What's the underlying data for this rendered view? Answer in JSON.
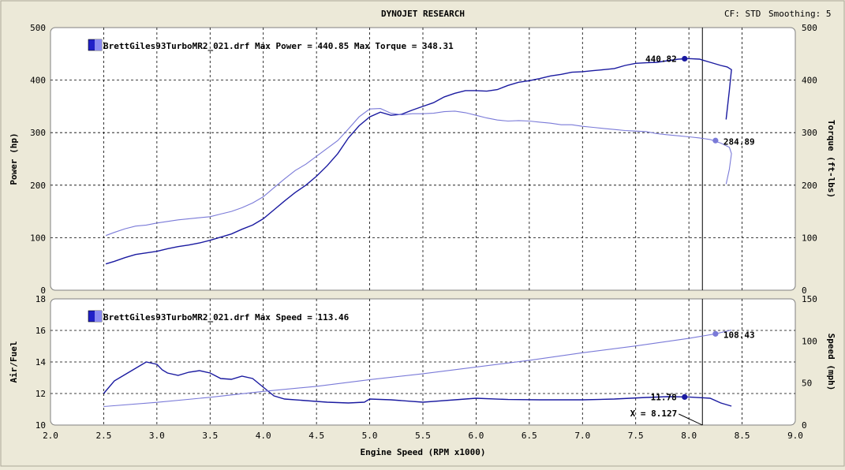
{
  "header": {
    "title": "DYNOJET RESEARCH",
    "cf_label": "CF: STD",
    "smoothing_label": "Smoothing: 5"
  },
  "colors": {
    "background": "#ece9d8",
    "plot_bg": "#ffffff",
    "dark_series": "#1a1aa0",
    "light_series": "#7a7ad8",
    "grid": "#000000",
    "cursor": "#000000"
  },
  "x_axis": {
    "label": "Engine Speed (RPM x1000)",
    "ticks": [
      "2.0",
      "2.5",
      "3.0",
      "3.5",
      "4.0",
      "4.5",
      "5.0",
      "5.5",
      "6.0",
      "6.5",
      "7.0",
      "7.5",
      "8.0",
      "8.5",
      "9.0"
    ],
    "range": [
      2.0,
      9.0
    ]
  },
  "cursor": {
    "x": 8.127,
    "label": "X = 8.127"
  },
  "chart_data": [
    {
      "type": "line",
      "legend": "BrettGiles93TurboMR2_021.drf Max Power = 440.85 Max Torque = 348.31",
      "ylabel_left": "Power (hp)",
      "ylabel_right": "Torque (ft-lbs)",
      "ylim_left": [
        0,
        500
      ],
      "ylim_right": [
        0,
        500
      ],
      "yticks_left": [
        "0",
        "100",
        "200",
        "300",
        "400",
        "500"
      ],
      "yticks_right": [
        "0",
        "100",
        "200",
        "300",
        "400",
        "500"
      ],
      "grid": true,
      "series": [
        {
          "axis": "left",
          "style": "dark",
          "marker_label": "440.82",
          "marker_x": 7.96,
          "marker_y": 440.82,
          "points": [
            [
              2.52,
              50
            ],
            [
              2.6,
              55
            ],
            [
              2.7,
              62
            ],
            [
              2.8,
              68
            ],
            [
              2.9,
              71
            ],
            [
              3.0,
              74
            ],
            [
              3.1,
              79
            ],
            [
              3.2,
              83
            ],
            [
              3.3,
              86
            ],
            [
              3.4,
              90
            ],
            [
              3.5,
              95
            ],
            [
              3.6,
              101
            ],
            [
              3.7,
              107
            ],
            [
              3.8,
              116
            ],
            [
              3.9,
              124
            ],
            [
              4.0,
              136
            ],
            [
              4.1,
              153
            ],
            [
              4.2,
              170
            ],
            [
              4.3,
              186
            ],
            [
              4.4,
              200
            ],
            [
              4.5,
              217
            ],
            [
              4.6,
              237
            ],
            [
              4.7,
              260
            ],
            [
              4.8,
              290
            ],
            [
              4.9,
              313
            ],
            [
              5.0,
              330
            ],
            [
              5.1,
              339
            ],
            [
              5.2,
              333
            ],
            [
              5.3,
              335
            ],
            [
              5.4,
              343
            ],
            [
              5.5,
              350
            ],
            [
              5.6,
              357
            ],
            [
              5.7,
              368
            ],
            [
              5.8,
              375
            ],
            [
              5.9,
              380
            ],
            [
              6.0,
              380
            ],
            [
              6.1,
              379
            ],
            [
              6.2,
              382
            ],
            [
              6.3,
              390
            ],
            [
              6.4,
              396
            ],
            [
              6.5,
              399
            ],
            [
              6.6,
              403
            ],
            [
              6.7,
              408
            ],
            [
              6.8,
              411
            ],
            [
              6.9,
              415
            ],
            [
              7.0,
              416
            ],
            [
              7.1,
              418
            ],
            [
              7.2,
              420
            ],
            [
              7.3,
              422
            ],
            [
              7.4,
              428
            ],
            [
              7.5,
              432
            ],
            [
              7.6,
              433
            ],
            [
              7.7,
              434
            ],
            [
              7.8,
              437
            ],
            [
              7.9,
              440
            ],
            [
              8.0,
              441
            ],
            [
              8.1,
              440
            ],
            [
              8.2,
              434
            ],
            [
              8.3,
              428
            ],
            [
              8.36,
              425
            ],
            [
              8.4,
              420
            ],
            [
              8.38,
              380
            ],
            [
              8.35,
              325
            ]
          ]
        },
        {
          "axis": "right",
          "style": "light",
          "marker_label": "284.89",
          "marker_x": 8.25,
          "marker_y": 284.89,
          "points": [
            [
              2.52,
              104
            ],
            [
              2.6,
              110
            ],
            [
              2.7,
              117
            ],
            [
              2.8,
              122
            ],
            [
              2.9,
              124
            ],
            [
              3.0,
              128
            ],
            [
              3.1,
              131
            ],
            [
              3.2,
              134
            ],
            [
              3.3,
              136
            ],
            [
              3.4,
              138
            ],
            [
              3.5,
              140
            ],
            [
              3.6,
              145
            ],
            [
              3.7,
              150
            ],
            [
              3.8,
              157
            ],
            [
              3.9,
              166
            ],
            [
              4.0,
              178
            ],
            [
              4.1,
              195
            ],
            [
              4.2,
              212
            ],
            [
              4.3,
              228
            ],
            [
              4.4,
              240
            ],
            [
              4.5,
              255
            ],
            [
              4.6,
              270
            ],
            [
              4.7,
              285
            ],
            [
              4.8,
              307
            ],
            [
              4.9,
              330
            ],
            [
              5.0,
              345
            ],
            [
              5.1,
              346
            ],
            [
              5.2,
              337
            ],
            [
              5.3,
              334
            ],
            [
              5.4,
              336
            ],
            [
              5.5,
              336
            ],
            [
              5.6,
              337
            ],
            [
              5.7,
              340
            ],
            [
              5.8,
              341
            ],
            [
              5.9,
              338
            ],
            [
              6.0,
              333
            ],
            [
              6.1,
              328
            ],
            [
              6.2,
              324
            ],
            [
              6.3,
              322
            ],
            [
              6.4,
              323
            ],
            [
              6.5,
              322
            ],
            [
              6.6,
              320
            ],
            [
              6.7,
              318
            ],
            [
              6.8,
              315
            ],
            [
              6.9,
              315
            ],
            [
              7.0,
              312
            ],
            [
              7.1,
              310
            ],
            [
              7.2,
              308
            ],
            [
              7.3,
              306
            ],
            [
              7.4,
              304
            ],
            [
              7.5,
              303
            ],
            [
              7.6,
              302
            ],
            [
              7.7,
              298
            ],
            [
              7.8,
              296
            ],
            [
              7.9,
              294
            ],
            [
              8.0,
              292
            ],
            [
              8.1,
              290
            ],
            [
              8.2,
              287
            ],
            [
              8.3,
              280
            ],
            [
              8.38,
              272
            ],
            [
              8.4,
              260
            ],
            [
              8.38,
              230
            ],
            [
              8.35,
              202
            ]
          ]
        }
      ]
    },
    {
      "type": "line",
      "legend": "BrettGiles93TurboMR2_021.drf Max Speed = 113.46",
      "ylabel_left": "Air/Fuel",
      "ylabel_right": "Speed (mph)",
      "ylim_left": [
        10,
        18
      ],
      "ylim_right": [
        0,
        150
      ],
      "yticks_left": [
        "10",
        "12",
        "14",
        "16",
        "18"
      ],
      "yticks_right": [
        "0",
        "50",
        "100",
        "150"
      ],
      "grid": true,
      "series": [
        {
          "axis": "left",
          "style": "dark",
          "marker_label": "11.78",
          "marker_x": 7.96,
          "marker_y": 11.78,
          "points": [
            [
              2.5,
              12.0
            ],
            [
              2.6,
              12.8
            ],
            [
              2.7,
              13.2
            ],
            [
              2.8,
              13.6
            ],
            [
              2.9,
              14.0
            ],
            [
              3.0,
              13.85
            ],
            [
              3.05,
              13.5
            ],
            [
              3.1,
              13.3
            ],
            [
              3.2,
              13.15
            ],
            [
              3.3,
              13.35
            ],
            [
              3.4,
              13.45
            ],
            [
              3.5,
              13.3
            ],
            [
              3.6,
              12.95
            ],
            [
              3.7,
              12.9
            ],
            [
              3.8,
              13.1
            ],
            [
              3.9,
              12.95
            ],
            [
              4.0,
              12.4
            ],
            [
              4.1,
              11.85
            ],
            [
              4.2,
              11.65
            ],
            [
              4.4,
              11.55
            ],
            [
              4.6,
              11.45
            ],
            [
              4.8,
              11.4
            ],
            [
              4.95,
              11.45
            ],
            [
              5.0,
              11.65
            ],
            [
              5.2,
              11.6
            ],
            [
              5.5,
              11.45
            ],
            [
              5.8,
              11.6
            ],
            [
              6.0,
              11.7
            ],
            [
              6.3,
              11.62
            ],
            [
              6.6,
              11.6
            ],
            [
              7.0,
              11.6
            ],
            [
              7.3,
              11.65
            ],
            [
              7.6,
              11.75
            ],
            [
              7.8,
              11.8
            ],
            [
              8.0,
              11.78
            ],
            [
              8.2,
              11.7
            ],
            [
              8.3,
              11.4
            ],
            [
              8.4,
              11.2
            ]
          ]
        },
        {
          "axis": "right",
          "style": "light",
          "marker_label": "108.43",
          "marker_x": 8.25,
          "marker_y": 108.43,
          "points": [
            [
              2.5,
              22
            ],
            [
              3.0,
              27
            ],
            [
              3.5,
              33
            ],
            [
              4.0,
              40
            ],
            [
              4.5,
              46
            ],
            [
              5.0,
              54
            ],
            [
              5.5,
              61
            ],
            [
              6.0,
              69
            ],
            [
              6.5,
              77
            ],
            [
              7.0,
              86
            ],
            [
              7.5,
              94
            ],
            [
              8.0,
              103
            ],
            [
              8.25,
              108.43
            ],
            [
              8.4,
              113
            ]
          ]
        }
      ]
    }
  ]
}
